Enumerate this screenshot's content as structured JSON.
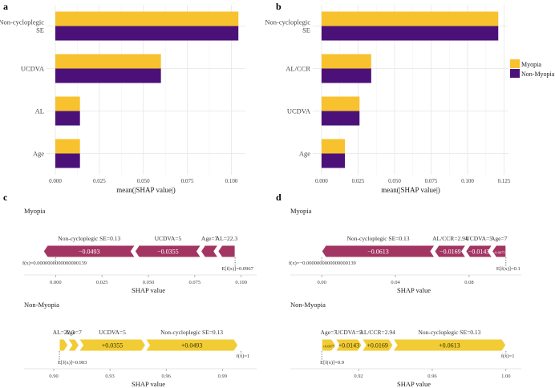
{
  "colors": {
    "myopia": "#f7c22e",
    "non_myopia": "#4b1179",
    "force_neg": "#a33563",
    "force_pos": "#f2cc35",
    "grid": "#e6e6e6",
    "axis": "#555555"
  },
  "chart_data": [
    {
      "panel": "a",
      "type": "bar",
      "orientation": "horizontal",
      "categories": [
        "Non-cycloplegic\nSE",
        "UCDVA",
        "AL",
        "Age"
      ],
      "series": [
        {
          "name": "Myopia",
          "values": [
            0.104,
            0.06,
            0.014,
            0.014
          ]
        },
        {
          "name": "Non-Myopia",
          "values": [
            0.104,
            0.06,
            0.014,
            0.014
          ]
        }
      ],
      "xlabel": "mean(|SHAP value|)",
      "xlim": [
        -0.005,
        0.108
      ],
      "ticks": [
        0.0,
        0.025,
        0.05,
        0.075,
        0.1
      ],
      "tick_labels": [
        "0.000",
        "0.025",
        "0.050",
        "0.075",
        "0.100"
      ]
    },
    {
      "panel": "b",
      "type": "bar",
      "orientation": "horizontal",
      "categories": [
        "Non-cycloplegic\nSE",
        "AL/CCR",
        "UCDVA",
        "Age"
      ],
      "series": [
        {
          "name": "Myopia",
          "values": [
            0.121,
            0.034,
            0.026,
            0.016
          ]
        },
        {
          "name": "Non-Myopia",
          "values": [
            0.121,
            0.034,
            0.026,
            0.016
          ]
        }
      ],
      "xlabel": "mean(|SHAP value|)",
      "xlim": [
        -0.006,
        0.128
      ],
      "ticks": [
        0.0,
        0.025,
        0.05,
        0.075,
        0.1,
        0.125
      ],
      "tick_labels": [
        "0.000",
        "0.025",
        "0.050",
        "0.075",
        "0.100",
        "0.125"
      ],
      "legend": [
        "Myopia",
        "Non-Myopia"
      ]
    },
    {
      "panel": "c",
      "type": "force",
      "subplots": [
        {
          "title": "Myopia",
          "direction": "negative",
          "start": 0.0967,
          "segments": [
            {
              "label": "AL=22.3",
              "value": -0.0092,
              "text": ""
            },
            {
              "label": "Age=7",
              "value": -0.0092,
              "text": ""
            },
            {
              "label": "UCDVA=5",
              "value": -0.0355,
              "text": "−0.0355"
            },
            {
              "label": "Non-cycloplegic SE=0.13",
              "value": -0.0493,
              "text": "−0.0493"
            }
          ],
          "fx_label": "f(x)=0.0000000000000000139",
          "fx_value": 0.0,
          "ef_label": "E[f(x)]=0.0967",
          "xlabel": "SHAP value",
          "xlim": [
            -0.004,
            0.104
          ],
          "ticks": [
            0.0,
            0.025,
            0.05,
            0.075,
            0.1
          ],
          "tick_labels": [
            "0.000",
            "0.025",
            "0.050",
            "0.075",
            "0.100"
          ]
        },
        {
          "title": "Non-Myopia",
          "direction": "positive",
          "start": 0.903,
          "segments": [
            {
              "label": "AL=22.3",
              "value": 0.0046,
              "text": ""
            },
            {
              "label": "Age=7",
              "value": 0.0059,
              "text": ""
            },
            {
              "label": "UCDVA=5",
              "value": 0.0355,
              "text": "+0.0355"
            },
            {
              "label": "Non-cycloplegic SE=0.13",
              "value": 0.0493,
              "text": "+0.0493"
            }
          ],
          "fx_label": "f(x)=1",
          "fx_value": 1.0,
          "ef_label": "E[f(x)]=0.903",
          "xlabel": "SHAP value",
          "xlim": [
            0.897,
            1.004
          ],
          "ticks": [
            0.9,
            0.93,
            0.96,
            0.99
          ],
          "tick_labels": [
            "0.90",
            "0.93",
            "0.96",
            "0.99"
          ]
        }
      ]
    },
    {
      "panel": "d",
      "type": "force",
      "subplots": [
        {
          "title": "Myopia",
          "direction": "negative",
          "start": 0.1,
          "segments": [
            {
              "label": "Age=7",
              "value": -0.0075,
              "text": "−0.0075"
            },
            {
              "label": "UCDVA=5",
              "value": -0.0143,
              "text": "−0.0143"
            },
            {
              "label": "AL/CCR=2.94",
              "value": -0.0169,
              "text": "−0.0169"
            },
            {
              "label": "Non-cycloplegic SE=0.13",
              "value": -0.0613,
              "text": "−0.0613"
            }
          ],
          "fx_label": "f(x)=−0.0000000000000000139",
          "fx_value": 0.0,
          "ef_label": "E[f(x)]=0.1",
          "xlabel": "SHAP value",
          "xlim": [
            -0.004,
            0.104
          ],
          "ticks": [
            0.0,
            0.04,
            0.08
          ],
          "tick_labels": [
            "0.00",
            "0.04",
            "0.08"
          ]
        },
        {
          "title": "Non-Myopia",
          "direction": "positive",
          "start": 0.9,
          "segments": [
            {
              "label": "Age=7",
              "value": 0.0075,
              "text": "+0.0075"
            },
            {
              "label": "UCDVA=5",
              "value": 0.0143,
              "text": "+0.0143"
            },
            {
              "label": "AL/CCR=2.94",
              "value": 0.0169,
              "text": "+0.0169"
            },
            {
              "label": "Non-cycloplegic SE=0.13",
              "value": 0.0613,
              "text": "+0.0613"
            }
          ],
          "fx_label": "f(x)=1",
          "fx_value": 1.0,
          "ef_label": "E[f(x)]=0.9",
          "xlabel": "SHAP value",
          "xlim": [
            0.896,
            1.004
          ],
          "ticks": [
            0.92,
            0.96,
            1.0
          ],
          "tick_labels": [
            "0.92",
            "0.96",
            "1.00"
          ]
        }
      ]
    }
  ]
}
